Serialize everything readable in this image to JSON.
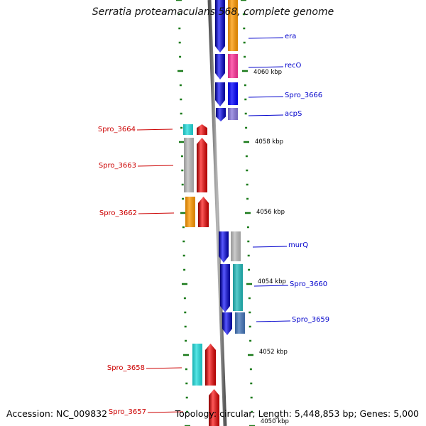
{
  "title": "Serratia proteamaculans 568, complete genome",
  "footer": {
    "accession": "Accession: NC_009832",
    "topology": "Topology: circular; Length: 5,448,853 bp; Genes: 5,000"
  },
  "colors": {
    "forward_label": "#cc0000",
    "reverse_label": "#0000cc",
    "tick": "#1a7a1a",
    "backbone": "#7a7a7a"
  },
  "kbp_labels": [
    "4060 kbp",
    "4058 kbp",
    "4056 kbp",
    "4054 kbp",
    "4052 kbp",
    "4050 kbp"
  ],
  "reverse_genes": [
    {
      "label": "era",
      "color": "#ff9900"
    },
    {
      "label": "recO",
      "color": "#ff3399"
    },
    {
      "label": "Spro_3666",
      "color": "#0000ff"
    },
    {
      "label": "acpS",
      "color": "#8877dd"
    },
    {
      "label": "murQ",
      "color": "#bbbbbb"
    },
    {
      "label": "Spro_3660",
      "color": "#22bbbb"
    },
    {
      "label": "Spro_3659",
      "color": "#4477bb"
    }
  ],
  "forward_genes": [
    {
      "label": "Spro_3664",
      "color": "#22dddd"
    },
    {
      "label": "Spro_3663",
      "color": "#bbbbbb"
    },
    {
      "label": "Spro_3662",
      "color": "#ff9900"
    },
    {
      "label": "Spro_3658",
      "color": "#22dddd"
    },
    {
      "label": "Spro_3657",
      "color": "#ff0000"
    }
  ]
}
